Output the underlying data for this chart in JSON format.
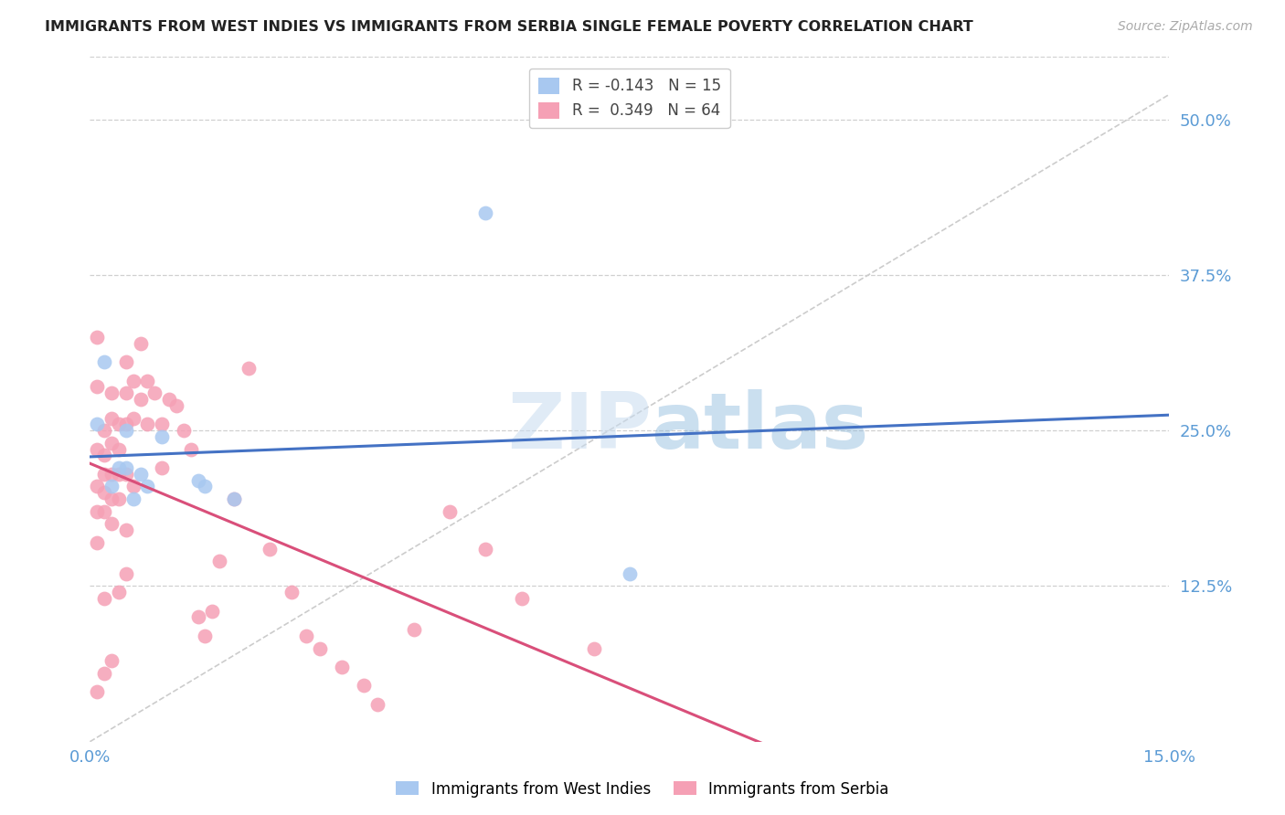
{
  "title": "IMMIGRANTS FROM WEST INDIES VS IMMIGRANTS FROM SERBIA SINGLE FEMALE POVERTY CORRELATION CHART",
  "source": "Source: ZipAtlas.com",
  "ylabel": "Single Female Poverty",
  "ytick_labels": [
    "50.0%",
    "37.5%",
    "25.0%",
    "12.5%"
  ],
  "ytick_values": [
    0.5,
    0.375,
    0.25,
    0.125
  ],
  "xlim": [
    0.0,
    0.15
  ],
  "ylim": [
    0.0,
    0.55
  ],
  "watermark_zip": "ZIP",
  "watermark_atlas": "atlas",
  "west_indies_R": -0.143,
  "west_indies_N": 15,
  "serbia_R": 0.349,
  "serbia_N": 64,
  "west_indies_color": "#a8c8f0",
  "serbia_color": "#f5a0b5",
  "west_indies_line_color": "#4472c4",
  "serbia_line_color": "#d94f7a",
  "diagonal_color": "#cccccc",
  "legend_label_wi": "Immigrants from West Indies",
  "legend_label_sb": "Immigrants from Serbia",
  "west_indies_x": [
    0.001,
    0.002,
    0.003,
    0.004,
    0.005,
    0.005,
    0.006,
    0.007,
    0.008,
    0.01,
    0.015,
    0.016,
    0.02,
    0.055,
    0.075
  ],
  "west_indies_y": [
    0.255,
    0.305,
    0.205,
    0.22,
    0.25,
    0.22,
    0.195,
    0.215,
    0.205,
    0.245,
    0.21,
    0.205,
    0.195,
    0.425,
    0.135
  ],
  "serbia_x": [
    0.001,
    0.001,
    0.001,
    0.001,
    0.001,
    0.001,
    0.001,
    0.002,
    0.002,
    0.002,
    0.002,
    0.002,
    0.002,
    0.002,
    0.003,
    0.003,
    0.003,
    0.003,
    0.003,
    0.003,
    0.003,
    0.004,
    0.004,
    0.004,
    0.004,
    0.004,
    0.005,
    0.005,
    0.005,
    0.005,
    0.005,
    0.005,
    0.006,
    0.006,
    0.006,
    0.007,
    0.007,
    0.008,
    0.008,
    0.009,
    0.01,
    0.01,
    0.011,
    0.012,
    0.013,
    0.014,
    0.015,
    0.016,
    0.017,
    0.018,
    0.02,
    0.022,
    0.025,
    0.028,
    0.03,
    0.032,
    0.035,
    0.038,
    0.04,
    0.045,
    0.05,
    0.055,
    0.06,
    0.07
  ],
  "serbia_y": [
    0.325,
    0.285,
    0.235,
    0.205,
    0.185,
    0.16,
    0.04,
    0.25,
    0.23,
    0.215,
    0.2,
    0.185,
    0.115,
    0.055,
    0.28,
    0.26,
    0.24,
    0.215,
    0.195,
    0.175,
    0.065,
    0.255,
    0.235,
    0.215,
    0.195,
    0.12,
    0.305,
    0.28,
    0.255,
    0.215,
    0.17,
    0.135,
    0.29,
    0.26,
    0.205,
    0.32,
    0.275,
    0.29,
    0.255,
    0.28,
    0.255,
    0.22,
    0.275,
    0.27,
    0.25,
    0.235,
    0.1,
    0.085,
    0.105,
    0.145,
    0.195,
    0.3,
    0.155,
    0.12,
    0.085,
    0.075,
    0.06,
    0.045,
    0.03,
    0.09,
    0.185,
    0.155,
    0.115,
    0.075
  ]
}
